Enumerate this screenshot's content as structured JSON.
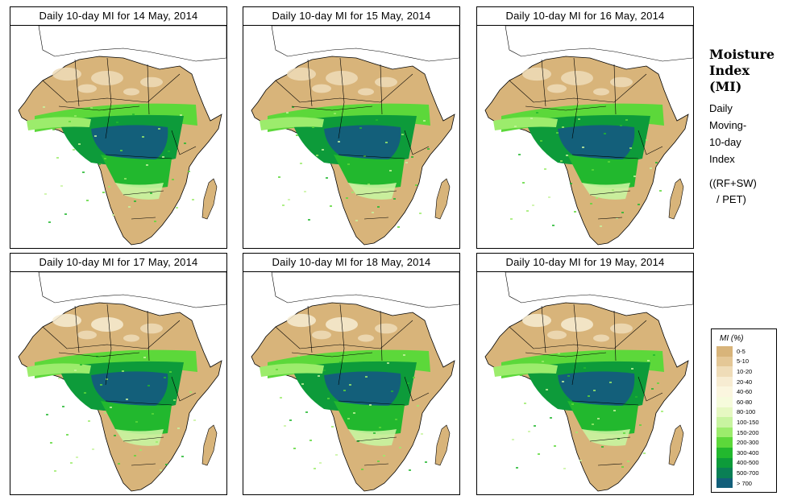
{
  "panels": [
    {
      "title": "Daily 10-day MI for 14 May, 2014"
    },
    {
      "title": "Daily 10-day MI for 15 May, 2014"
    },
    {
      "title": "Daily 10-day MI for 16 May, 2014"
    },
    {
      "title": "Daily 10-day MI for 17 May, 2014"
    },
    {
      "title": "Daily 10-day MI for 18 May, 2014"
    },
    {
      "title": "Daily 10-day MI for 19 May, 2014"
    }
  ],
  "side": {
    "title_lines": [
      "Moisture",
      "Index",
      "(MI)"
    ],
    "subtitle_lines": [
      "Daily",
      "Moving-",
      "10-day",
      "Index"
    ],
    "formula_lines": [
      "((RF+SW)",
      "/ PET)"
    ]
  },
  "legend": {
    "title": "MI (%)",
    "items": [
      {
        "label": "0-5",
        "color": "#d8b47a"
      },
      {
        "label": "5-10",
        "color": "#e4c796"
      },
      {
        "label": "10-20",
        "color": "#efdcb8"
      },
      {
        "label": "20-40",
        "color": "#f7ecd2"
      },
      {
        "label": "40-60",
        "color": "#fbf6df"
      },
      {
        "label": "60-80",
        "color": "#f6fbdc"
      },
      {
        "label": "80-100",
        "color": "#e6f8c2"
      },
      {
        "label": "100-150",
        "color": "#c8f4a0"
      },
      {
        "label": "150-200",
        "color": "#9cec6c"
      },
      {
        "label": "200-300",
        "color": "#5cd83a"
      },
      {
        "label": "300-400",
        "color": "#22b82e"
      },
      {
        "label": "400-500",
        "color": "#0d9b3a"
      },
      {
        "label": "500-700",
        "color": "#0a7f55"
      },
      {
        "label": "> 700",
        "color": "#135f7a"
      }
    ]
  }
}
